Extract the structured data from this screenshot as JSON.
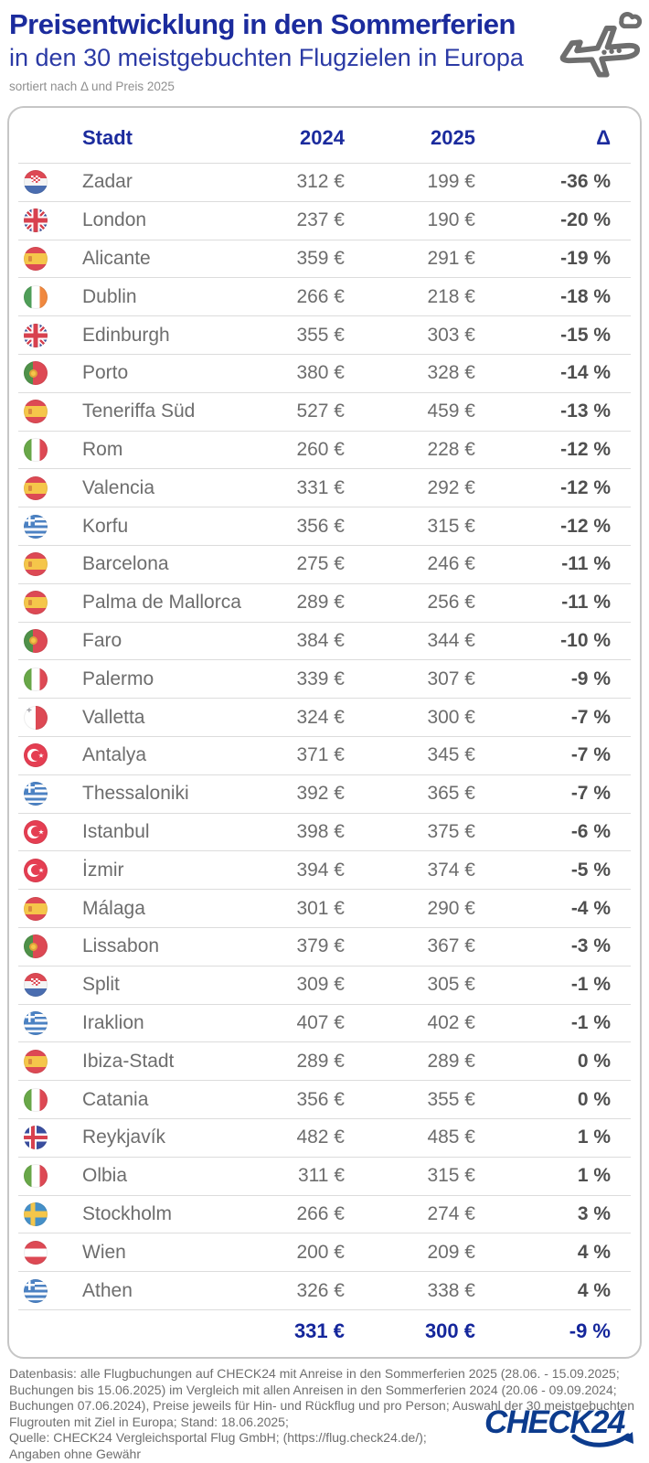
{
  "header": {
    "title": "Preisentwicklung in den Sommerferien",
    "subtitle": "in den 30 meistgebuchten Flugzielen in Europa",
    "sort_note": "sortiert nach Δ und Preis 2025"
  },
  "table": {
    "columns": [
      "Stadt",
      "2024",
      "2025",
      "Δ"
    ],
    "rows": [
      {
        "city": "Zadar",
        "country": "Kroatien",
        "flag": "hr",
        "y2024": "312 €",
        "y2025": "199 €",
        "delta": "-36 %"
      },
      {
        "city": "London",
        "country": "Großbritannien",
        "flag": "gb",
        "y2024": "237 €",
        "y2025": "190 €",
        "delta": "-20 %"
      },
      {
        "city": "Alicante",
        "country": "Spanien",
        "flag": "es",
        "y2024": "359 €",
        "y2025": "291 €",
        "delta": "-19 %"
      },
      {
        "city": "Dublin",
        "country": "Irland",
        "flag": "ie",
        "y2024": "266 €",
        "y2025": "218 €",
        "delta": "-18 %"
      },
      {
        "city": "Edinburgh",
        "country": "Großbritannien",
        "flag": "gb",
        "y2024": "355 €",
        "y2025": "303 €",
        "delta": "-15 %"
      },
      {
        "city": "Porto",
        "country": "Portugal",
        "flag": "pt",
        "y2024": "380 €",
        "y2025": "328 €",
        "delta": "-14 %"
      },
      {
        "city": "Teneriffa Süd",
        "country": "Spanien",
        "flag": "es",
        "y2024": "527 €",
        "y2025": "459 €",
        "delta": "-13 %"
      },
      {
        "city": "Rom",
        "country": "Italien",
        "flag": "it",
        "y2024": "260 €",
        "y2025": "228 €",
        "delta": "-12 %"
      },
      {
        "city": "Valencia",
        "country": "Spanien",
        "flag": "es",
        "y2024": "331 €",
        "y2025": "292 €",
        "delta": "-12 %"
      },
      {
        "city": "Korfu",
        "country": "Griechenland",
        "flag": "gr",
        "y2024": "356 €",
        "y2025": "315 €",
        "delta": "-12 %"
      },
      {
        "city": "Barcelona",
        "country": "Spanien",
        "flag": "es",
        "y2024": "275 €",
        "y2025": "246 €",
        "delta": "-11 %"
      },
      {
        "city": "Palma de Mallorca",
        "country": "Spanien",
        "flag": "es",
        "y2024": "289 €",
        "y2025": "256 €",
        "delta": "-11 %"
      },
      {
        "city": "Faro",
        "country": "Portugal",
        "flag": "pt",
        "y2024": "384 €",
        "y2025": "344 €",
        "delta": "-10 %"
      },
      {
        "city": "Palermo",
        "country": "Italien",
        "flag": "it",
        "y2024": "339 €",
        "y2025": "307 €",
        "delta": "-9 %"
      },
      {
        "city": "Valletta",
        "country": "Malta",
        "flag": "mt",
        "y2024": "324 €",
        "y2025": "300 €",
        "delta": "-7 %"
      },
      {
        "city": "Antalya",
        "country": "Türkei",
        "flag": "tr",
        "y2024": "371 €",
        "y2025": "345 €",
        "delta": "-7 %"
      },
      {
        "city": "Thessaloniki",
        "country": "Griechenland",
        "flag": "gr",
        "y2024": "392 €",
        "y2025": "365 €",
        "delta": "-7 %"
      },
      {
        "city": "Istanbul",
        "country": "Türkei",
        "flag": "tr",
        "y2024": "398 €",
        "y2025": "375 €",
        "delta": "-6 %"
      },
      {
        "city": "İzmir",
        "country": "Türkei",
        "flag": "tr",
        "y2024": "394 €",
        "y2025": "374 €",
        "delta": "-5 %"
      },
      {
        "city": "Málaga",
        "country": "Spanien",
        "flag": "es",
        "y2024": "301 €",
        "y2025": "290 €",
        "delta": "-4 %"
      },
      {
        "city": "Lissabon",
        "country": "Portugal",
        "flag": "pt",
        "y2024": "379 €",
        "y2025": "367 €",
        "delta": "-3 %"
      },
      {
        "city": "Split",
        "country": "Kroatien",
        "flag": "hr",
        "y2024": "309 €",
        "y2025": "305 €",
        "delta": "-1 %"
      },
      {
        "city": "Iraklion",
        "country": "Griechenland",
        "flag": "gr",
        "y2024": "407 €",
        "y2025": "402 €",
        "delta": "-1 %"
      },
      {
        "city": "Ibiza-Stadt",
        "country": "Spanien",
        "flag": "es",
        "y2024": "289 €",
        "y2025": "289 €",
        "delta": "0 %"
      },
      {
        "city": "Catania",
        "country": "Italien",
        "flag": "it",
        "y2024": "356 €",
        "y2025": "355 €",
        "delta": "0 %"
      },
      {
        "city": "Reykjavík",
        "country": "Island",
        "flag": "is",
        "y2024": "482 €",
        "y2025": "485 €",
        "delta": "1 %"
      },
      {
        "city": "Olbia",
        "country": "Italien",
        "flag": "it",
        "y2024": "311 €",
        "y2025": "315 €",
        "delta": "1 %"
      },
      {
        "city": "Stockholm",
        "country": "Schweden",
        "flag": "se",
        "y2024": "266 €",
        "y2025": "274 €",
        "delta": "3 %"
      },
      {
        "city": "Wien",
        "country": "Österreich",
        "flag": "at",
        "y2024": "200 €",
        "y2025": "209 €",
        "delta": "4 %"
      },
      {
        "city": "Athen",
        "country": "Griechenland",
        "flag": "gr",
        "y2024": "326 €",
        "y2025": "338 €",
        "delta": "4 %"
      }
    ],
    "summary": {
      "y2024": "331 €",
      "y2025": "300 €",
      "delta": "-9 %"
    }
  },
  "footer": {
    "lines": [
      "Datenbasis: alle Flugbuchungen auf CHECK24 mit Anreise in den Sommerferien 2025 (28.06. - 15.09.2025;",
      "Buchungen bis 15.06.2025) im Vergleich mit allen Anreisen in den Sommerferien 2024 (20.06 - 09.09.2024;",
      "Buchungen 07.06.2024), Preise jeweils für Hin- und Rückflug und pro Person; Auswahl der 30 meistgebuchten",
      "Flugrouten mit Ziel in Europa; Stand: 18.06.2025;",
      "Quelle: CHECK24 Vergleichsportal Flug GmbH; (https://flug.check24.de/);",
      "Angaben ohne Gewähr"
    ],
    "logo_text": "CHECK24"
  },
  "icons": {
    "top_right": "plane-with-cloud-icon",
    "logo_swoosh": "curved-arrow-icon"
  },
  "colors": {
    "title_blue": "#1b2b9d",
    "subtitle_blue": "#2b3aa5",
    "summary_blue": "#14269b",
    "logo_blue": "#0c3b8d",
    "row_text_gray": "#6d6d6d",
    "delta_gray": "#4f4f4f",
    "note_gray": "#8f8f8f",
    "separator_gray": "#dcdcdc",
    "card_border_gray": "#c6c6c6",
    "icon_gray": "#6e6e6e"
  }
}
